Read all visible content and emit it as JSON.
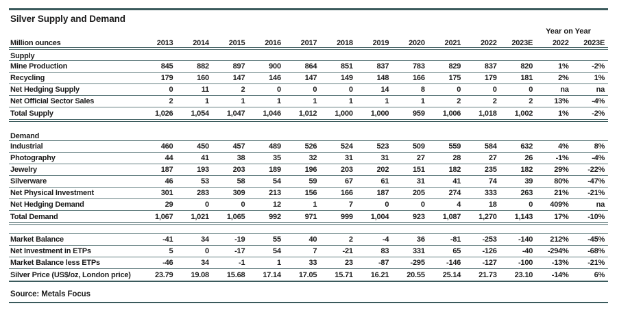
{
  "title": "Silver Supply and Demand",
  "source_note": "Source: Metals Focus",
  "colors": {
    "line_thin": "#5f7b7d",
    "line_thick": "#3a5a5c",
    "text": "#1a1a1a"
  },
  "table": {
    "unit_label": "Million ounces",
    "yoy_group_label": "Year on Year",
    "year_columns": [
      "2013",
      "2014",
      "2015",
      "2016",
      "2017",
      "2018",
      "2019",
      "2020",
      "2021",
      "2022",
      "2023E"
    ],
    "yoy_columns": [
      "2022",
      "2023E"
    ],
    "rows": [
      {
        "type": "label",
        "label": "Supply"
      },
      {
        "type": "data",
        "label": "Mine Production",
        "values": [
          "845",
          "882",
          "897",
          "900",
          "864",
          "851",
          "837",
          "783",
          "829",
          "837",
          "820",
          "1%",
          "-2%"
        ]
      },
      {
        "type": "data",
        "label": "Recycling",
        "values": [
          "179",
          "160",
          "147",
          "146",
          "147",
          "149",
          "148",
          "166",
          "175",
          "179",
          "181",
          "2%",
          "1%"
        ]
      },
      {
        "type": "data",
        "label": "Net Hedging Supply",
        "values": [
          "0",
          "11",
          "2",
          "0",
          "0",
          "0",
          "14",
          "8",
          "0",
          "0",
          "0",
          "na",
          "na"
        ]
      },
      {
        "type": "data",
        "label": "Net Official Sector Sales",
        "values": [
          "2",
          "1",
          "1",
          "1",
          "1",
          "1",
          "1",
          "1",
          "2",
          "2",
          "2",
          "13%",
          "-4%"
        ]
      },
      {
        "type": "total",
        "label": "Total Supply",
        "values": [
          "1,026",
          "1,054",
          "1,047",
          "1,046",
          "1,012",
          "1,000",
          "1,000",
          "959",
          "1,006",
          "1,018",
          "1,002",
          "1%",
          "-2%"
        ]
      },
      {
        "type": "gap"
      },
      {
        "type": "label",
        "label": "Demand"
      },
      {
        "type": "data",
        "label": "Industrial",
        "values": [
          "460",
          "450",
          "457",
          "489",
          "526",
          "524",
          "523",
          "509",
          "559",
          "584",
          "632",
          "4%",
          "8%"
        ]
      },
      {
        "type": "data",
        "label": "Photography",
        "values": [
          "44",
          "41",
          "38",
          "35",
          "32",
          "31",
          "31",
          "27",
          "28",
          "27",
          "26",
          "-1%",
          "-4%"
        ]
      },
      {
        "type": "data",
        "label": "Jewelry",
        "values": [
          "187",
          "193",
          "203",
          "189",
          "196",
          "203",
          "202",
          "151",
          "182",
          "235",
          "182",
          "29%",
          "-22%"
        ]
      },
      {
        "type": "data",
        "label": "Silverware",
        "values": [
          "46",
          "53",
          "58",
          "54",
          "59",
          "67",
          "61",
          "31",
          "41",
          "74",
          "39",
          "80%",
          "-47%"
        ]
      },
      {
        "type": "data",
        "label": "Net Physical Investment",
        "values": [
          "301",
          "283",
          "309",
          "213",
          "156",
          "166",
          "187",
          "205",
          "274",
          "333",
          "263",
          "21%",
          "-21%"
        ]
      },
      {
        "type": "data",
        "label": "Net Hedging Demand",
        "values": [
          "29",
          "0",
          "0",
          "12",
          "1",
          "7",
          "0",
          "0",
          "4",
          "18",
          "0",
          "409%",
          "na"
        ]
      },
      {
        "type": "total",
        "label": "Total Demand",
        "values": [
          "1,067",
          "1,021",
          "1,065",
          "992",
          "971",
          "999",
          "1,004",
          "923",
          "1,087",
          "1,270",
          "1,143",
          "17%",
          "-10%"
        ]
      },
      {
        "type": "gap_line"
      },
      {
        "type": "data",
        "label": "Market Balance",
        "values": [
          "-41",
          "34",
          "-19",
          "55",
          "40",
          "2",
          "-4",
          "36",
          "-81",
          "-253",
          "-140",
          "212%",
          "-45%"
        ]
      },
      {
        "type": "data",
        "label": "Net Investment in ETPs",
        "values": [
          "5",
          "0",
          "-17",
          "54",
          "7",
          "-21",
          "83",
          "331",
          "65",
          "-126",
          "-40",
          "-294%",
          "-68%"
        ]
      },
      {
        "type": "data",
        "label": "Market Balance less ETPs",
        "values": [
          "-46",
          "34",
          "-1",
          "1",
          "33",
          "23",
          "-87",
          "-295",
          "-146",
          "-127",
          "-100",
          "-13%",
          "-21%"
        ]
      },
      {
        "type": "price",
        "label": "Silver Price (US$/oz, London price)",
        "values": [
          "23.79",
          "19.08",
          "15.68",
          "17.14",
          "17.05",
          "15.71",
          "16.21",
          "20.55",
          "25.14",
          "21.73",
          "23.10",
          "-14%",
          "6%"
        ]
      }
    ]
  }
}
